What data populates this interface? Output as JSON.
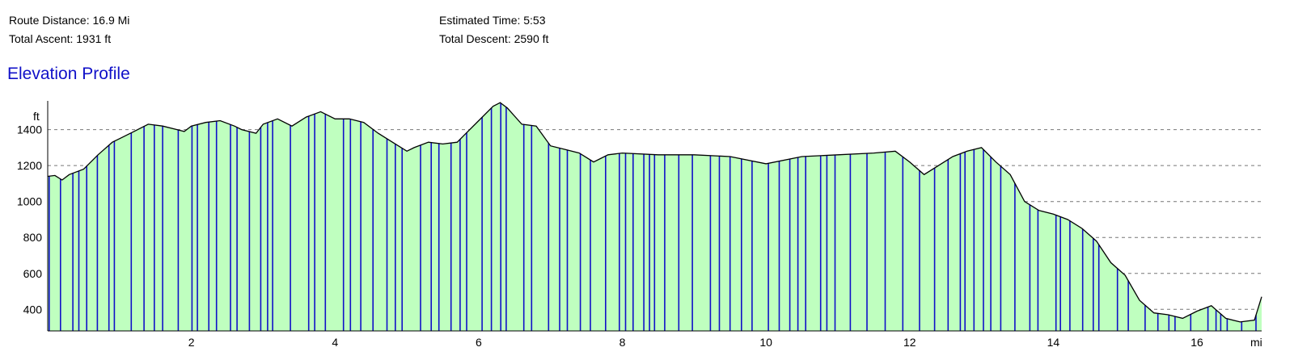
{
  "summary": {
    "route_distance": "Route Distance: 16.9 Mi",
    "total_ascent": "Total Ascent: 1931 ft",
    "estimated_time": "Estimated Time: 5:53",
    "total_descent": "Total Descent: 2590 ft"
  },
  "page_title": "Elevation Profile",
  "colors": {
    "fill": "#bfffbf",
    "markers": "#1010c8",
    "profile_line": "#000000",
    "grid": "#777777",
    "title": "#1010c8"
  },
  "chart_data": {
    "type": "area",
    "title": "Elevation Profile",
    "ylabel": "ft",
    "xlabel": "mi",
    "xlim": [
      0,
      16.9
    ],
    "ylim": [
      280,
      1560
    ],
    "x_ticks": [
      2,
      4,
      6,
      8,
      10,
      12,
      14,
      16
    ],
    "x_tick_labels": [
      "2",
      "4",
      "6",
      "8",
      "10",
      "12",
      "14",
      "16"
    ],
    "y_ticks": [
      400,
      600,
      800,
      1000,
      1200,
      1400
    ],
    "y_tick_labels": [
      "400",
      "600",
      "800",
      "1000",
      "1200",
      "1400"
    ],
    "grid": "horizontal dashed",
    "series": [
      {
        "x": [
          0,
          0.1,
          0.2,
          0.3,
          0.5,
          0.7,
          0.9,
          1.0,
          1.2,
          1.4,
          1.6,
          1.8,
          1.9,
          2.0,
          2.2,
          2.4,
          2.6,
          2.7,
          2.9,
          3.0,
          3.2,
          3.4,
          3.6,
          3.8,
          4.0,
          4.2,
          4.4,
          4.6,
          4.8,
          5.0,
          5.1,
          5.3,
          5.5,
          5.7,
          5.8,
          6.0,
          6.2,
          6.3,
          6.4,
          6.6,
          6.8,
          7.0,
          7.2,
          7.4,
          7.6,
          7.8,
          8.0,
          8.5,
          9.0,
          9.5,
          10.0,
          10.5,
          11.0,
          11.5,
          11.8,
          12.0,
          12.2,
          12.4,
          12.6,
          12.8,
          13.0,
          13.2,
          13.4,
          13.6,
          13.8,
          14.0,
          14.2,
          14.4,
          14.6,
          14.8,
          15.0,
          15.2,
          15.4,
          15.6,
          15.8,
          16.0,
          16.2,
          16.4,
          16.6,
          16.8,
          16.9
        ],
        "y": [
          1140,
          1145,
          1120,
          1150,
          1180,
          1260,
          1330,
          1350,
          1390,
          1430,
          1420,
          1400,
          1390,
          1420,
          1440,
          1450,
          1420,
          1400,
          1380,
          1430,
          1460,
          1420,
          1470,
          1500,
          1460,
          1460,
          1440,
          1380,
          1330,
          1280,
          1300,
          1330,
          1320,
          1330,
          1370,
          1450,
          1530,
          1550,
          1520,
          1430,
          1420,
          1310,
          1290,
          1270,
          1220,
          1260,
          1270,
          1260,
          1260,
          1250,
          1210,
          1250,
          1260,
          1270,
          1280,
          1220,
          1150,
          1200,
          1250,
          1280,
          1300,
          1220,
          1150,
          1000,
          950,
          930,
          900,
          850,
          780,
          660,
          590,
          450,
          380,
          370,
          350,
          390,
          420,
          350,
          330,
          340,
          470
        ]
      }
    ]
  }
}
